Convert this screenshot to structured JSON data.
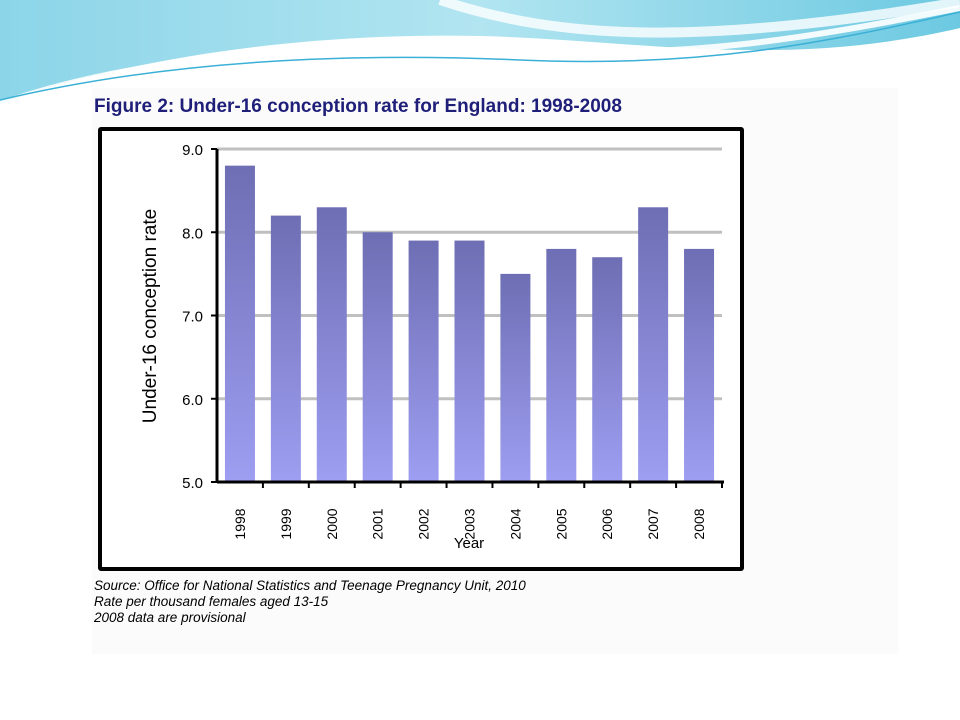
{
  "figure_title": "Figure 2: Under-16 conception rate for England: 1998-2008",
  "notes": [
    "Source: Office for National Statistics and Teenage Pregnancy Unit, 2010",
    "Rate per thousand females aged 13-15",
    "2008 data are provisional"
  ],
  "colors": {
    "bar_top": "#6e6eb4",
    "bar_bottom": "#9e9ef2",
    "gridline": "#c0c0c0",
    "title": "#1f1f7a",
    "header_wave": "#8fd4e6"
  },
  "chart_data": {
    "type": "bar",
    "title": "",
    "xlabel": "Year",
    "ylabel": "Under-16 conception rate",
    "categories": [
      "1998",
      "1999",
      "2000",
      "2001",
      "2002",
      "2003",
      "2004",
      "2005",
      "2006",
      "2007",
      "2008"
    ],
    "values": [
      8.8,
      8.2,
      8.3,
      8.0,
      7.9,
      7.9,
      7.5,
      7.8,
      7.7,
      8.3,
      7.8
    ],
    "ylim": [
      5.0,
      9.0
    ],
    "yticks": [
      "5.0",
      "6.0",
      "7.0",
      "8.0",
      "9.0"
    ],
    "grid": true,
    "legend": "none"
  }
}
